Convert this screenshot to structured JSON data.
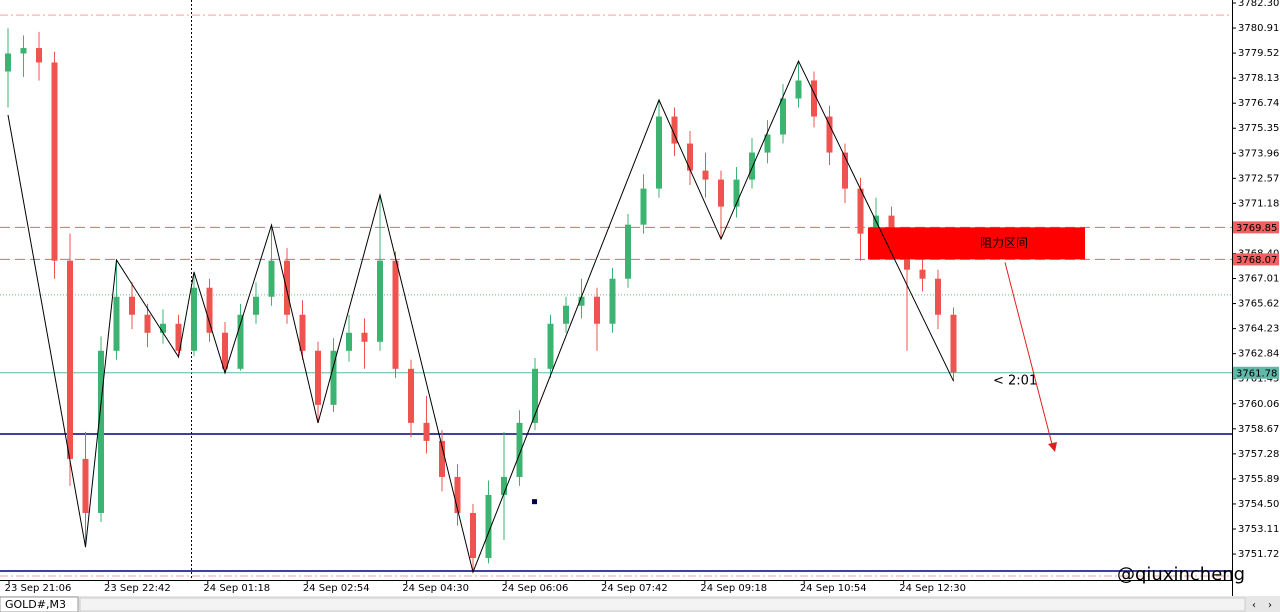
{
  "chart_data": {
    "type": "candlestick",
    "symbol": "GOLD#,M3",
    "ylim": [
      3750.28,
      3782.3
    ],
    "yticks": [
      {
        "value": 3782.3,
        "label": "3782.30"
      },
      3780.91,
      3779.52,
      3778.13,
      3776.74,
      3775.35,
      3773.96,
      3772.57,
      3771.18,
      {
        "value": 3768.4,
        "label": "3768.40"
      },
      3767.01,
      3765.62,
      3764.23,
      3762.84,
      3761.45,
      3760.06,
      3758.67,
      3757.28,
      3755.89,
      {
        "value": 3754.5,
        "label": "3754.50"
      },
      3753.11,
      3751.72
    ],
    "time_labels": [
      "23 Sep 21:06",
      "23 Sep 22:42",
      "24 Sep 01:18",
      "24 Sep 02:54",
      "24 Sep 04:30",
      "24 Sep 06:06",
      "24 Sep 07:42",
      "24 Sep 09:18",
      "24 Sep 10:54",
      "24 Sep 12:30"
    ],
    "colors": {
      "up": "#3cb371",
      "down": "#ef5350"
    },
    "candles": [
      [
        3778.5,
        3780.9,
        3776.5,
        3779.5
      ],
      [
        3779.5,
        3780.5,
        3778.2,
        3779.8
      ],
      [
        3779.8,
        3780.7,
        3778.0,
        3779.0
      ],
      [
        3779.0,
        3779.6,
        3767.0,
        3768.0
      ],
      [
        3768.0,
        3769.5,
        3755.5,
        3757.0
      ],
      [
        3757.0,
        3758.5,
        3752.1,
        3754.0
      ],
      [
        3754.0,
        3763.8,
        3753.5,
        3763.0
      ],
      [
        3763.0,
        3768.0,
        3762.5,
        3766.0
      ],
      [
        3766.0,
        3766.8,
        3764.2,
        3765.0
      ],
      [
        3765.0,
        3765.6,
        3763.2,
        3764.0
      ],
      [
        3764.0,
        3765.3,
        3763.4,
        3764.5
      ],
      [
        3764.5,
        3765.0,
        3762.6,
        3763.0
      ],
      [
        3763.0,
        3767.4,
        3762.7,
        3766.5
      ],
      [
        3766.5,
        3767.0,
        3763.5,
        3764.0
      ],
      [
        3764.0,
        3764.6,
        3761.8,
        3762.0
      ],
      [
        3762.0,
        3765.6,
        3761.9,
        3765.0
      ],
      [
        3765.0,
        3766.8,
        3764.5,
        3766.0
      ],
      [
        3766.0,
        3770.0,
        3765.5,
        3768.0
      ],
      [
        3768.0,
        3768.7,
        3764.5,
        3765.0
      ],
      [
        3765.0,
        3765.8,
        3762.5,
        3763.0
      ],
      [
        3763.0,
        3763.5,
        3759.0,
        3760.0
      ],
      [
        3760.0,
        3763.7,
        3759.6,
        3763.0
      ],
      [
        3763.0,
        3765.0,
        3762.4,
        3764.0
      ],
      [
        3764.0,
        3764.8,
        3762.0,
        3763.5
      ],
      [
        3763.5,
        3771.6,
        3763.0,
        3768.0
      ],
      [
        3768.0,
        3768.5,
        3761.5,
        3762.0
      ],
      [
        3762.0,
        3762.5,
        3758.2,
        3759.0
      ],
      [
        3759.0,
        3760.5,
        3757.3,
        3758.0
      ],
      [
        3758.0,
        3758.6,
        3755.2,
        3756.0
      ],
      [
        3756.0,
        3756.7,
        3753.3,
        3754.0
      ],
      [
        3754.0,
        3754.5,
        3750.7,
        3751.5
      ],
      [
        3751.5,
        3755.8,
        3751.2,
        3755.0
      ],
      [
        3755.0,
        3758.5,
        3752.5,
        3756.0
      ],
      [
        3756.0,
        3759.7,
        3755.5,
        3759.0
      ],
      [
        3759.0,
        3762.6,
        3758.6,
        3762.0
      ],
      [
        3762.0,
        3765.0,
        3761.5,
        3764.5
      ],
      [
        3764.5,
        3766.0,
        3764.0,
        3765.5
      ],
      [
        3765.5,
        3767.0,
        3764.8,
        3766.0
      ],
      [
        3766.0,
        3766.5,
        3763.0,
        3764.5
      ],
      [
        3764.5,
        3767.6,
        3764.0,
        3767.0
      ],
      [
        3767.0,
        3770.6,
        3766.5,
        3770.0
      ],
      [
        3770.0,
        3772.8,
        3769.5,
        3772.0
      ],
      [
        3772.0,
        3776.9,
        3771.5,
        3776.0
      ],
      [
        3776.0,
        3776.5,
        3773.8,
        3774.5
      ],
      [
        3774.5,
        3775.2,
        3772.2,
        3773.0
      ],
      [
        3773.0,
        3774.0,
        3771.5,
        3772.5
      ],
      [
        3772.5,
        3773.0,
        3769.2,
        3771.0
      ],
      [
        3771.0,
        3773.2,
        3770.4,
        3772.5
      ],
      [
        3772.5,
        3774.8,
        3772.0,
        3774.0
      ],
      [
        3774.0,
        3775.8,
        3773.4,
        3775.0
      ],
      [
        3775.0,
        3777.8,
        3774.5,
        3777.0
      ],
      [
        3777.0,
        3779.1,
        3776.5,
        3778.0
      ],
      [
        3778.0,
        3778.5,
        3775.4,
        3776.0
      ],
      [
        3776.0,
        3776.6,
        3773.3,
        3774.0
      ],
      [
        3774.0,
        3774.5,
        3771.2,
        3772.0
      ],
      [
        3772.0,
        3772.6,
        3768.0,
        3769.5
      ],
      [
        3769.5,
        3771.5,
        3769.0,
        3770.5
      ],
      [
        3770.5,
        3771.0,
        3768.4,
        3769.0
      ],
      [
        3769.0,
        3769.6,
        3763.0,
        3767.5
      ],
      [
        3767.5,
        3768.8,
        3766.3,
        3767.0
      ],
      [
        3767.0,
        3767.5,
        3764.2,
        3765.0
      ],
      [
        3765.0,
        3765.4,
        3761.3,
        3761.8
      ]
    ],
    "zigzag": {
      "color": "#000000",
      "bars": [
        0,
        5,
        7,
        11,
        12,
        14,
        17,
        20,
        24,
        30,
        42,
        46,
        51,
        61
      ],
      "values": [
        3776.09,
        3752.11,
        3768.04,
        3762.66,
        3767.37,
        3761.77,
        3769.98,
        3758.99,
        3771.65,
        3750.72,
        3776.92,
        3769.2,
        3779.08,
        3761.32
      ]
    },
    "levels": [
      {
        "value": 3781.63,
        "color": "#f4a0a0",
        "style": "dashdot"
      },
      {
        "value": 3769.85,
        "color": "#f06060",
        "style": "dash",
        "label": 3769.85
      },
      {
        "value": 3768.07,
        "color": "#f06060",
        "style": "dash",
        "label": 3768.07
      },
      {
        "value": 3766.1,
        "color": "#66bb88",
        "style": "dot"
      },
      {
        "value": 3761.78,
        "color": "#5fb8a8",
        "style": "solid",
        "label": 3761.78
      },
      {
        "value": 3758.38,
        "color": "#000080",
        "style": "solid"
      },
      {
        "value": 3750.78,
        "color": "#000080",
        "style": "solid"
      },
      {
        "value": 3750.5,
        "color": "#f4a0a0",
        "style": "dashdot"
      }
    ],
    "zone": {
      "text": "阻力区间",
      "from": 3768.07,
      "to": 3769.85,
      "color": "#ff0000"
    },
    "timer": "< 2:01",
    "marker": {
      "bar": 34,
      "value": 3754.6
    },
    "watermark": "@qiuxincheng"
  }
}
